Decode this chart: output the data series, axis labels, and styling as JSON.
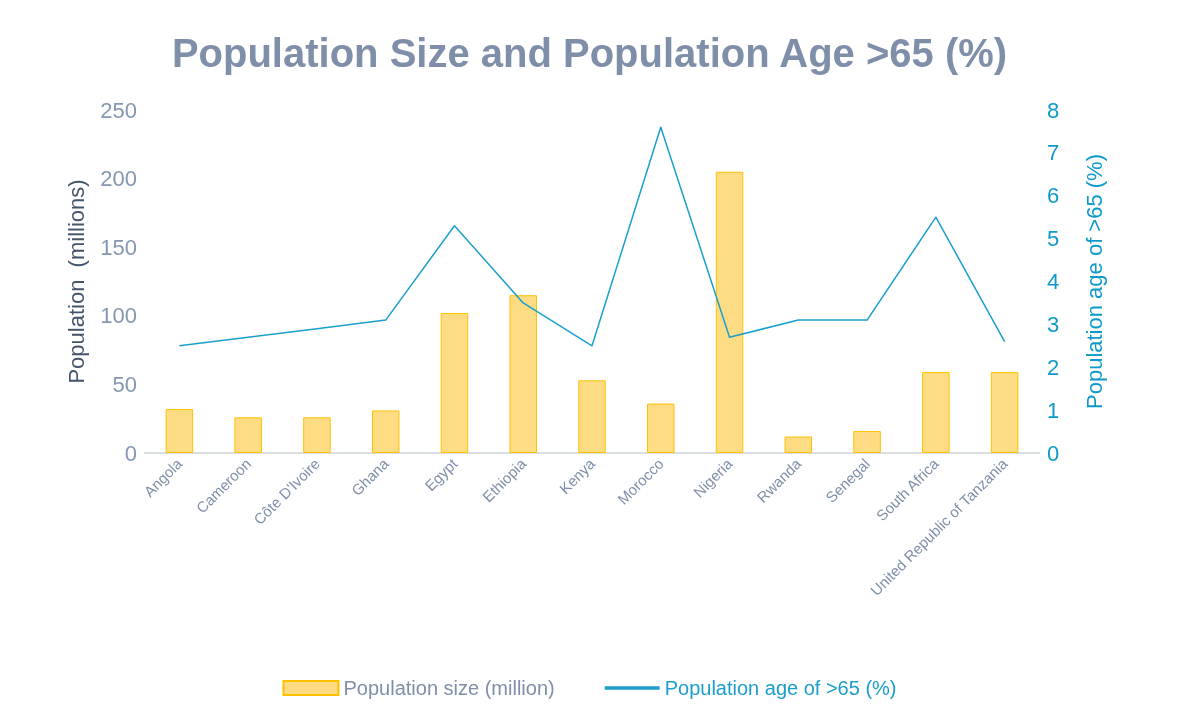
{
  "chart_data": {
    "type": "bar",
    "title": "Population Size and Population Age >65 (%)",
    "ylabel": "Population  (millions)",
    "y2label": "Population age of >65 (%)",
    "categories": [
      "Angola",
      "Cameroon",
      "Côte D'Ivoire",
      "Ghana",
      "Egypt",
      "Ethiopia",
      "Kenya",
      "Morocco",
      "Nigeria",
      "Rwanda",
      "Senegal",
      "South Africa",
      "United Republic of Tanzania"
    ],
    "series": [
      {
        "name": "Population size (million)",
        "color": "#fddc84",
        "values": [
          32,
          26,
          26,
          31,
          102,
          115,
          53,
          36,
          205,
          12,
          16,
          59,
          59
        ]
      },
      {
        "name": "Population age of >65 (%)",
        "type": "line",
        "axis": "y2",
        "color": "#1a9fcc",
        "values": [
          2.5,
          2.7,
          2.9,
          3.1,
          5.3,
          3.5,
          2.5,
          7.6,
          2.7,
          3.1,
          3.1,
          5.5,
          2.6
        ]
      }
    ],
    "ylim": [
      0,
      250
    ],
    "yticks": [
      0,
      50,
      100,
      150,
      200,
      250
    ],
    "y2lim": [
      0,
      8
    ],
    "y2ticks": [
      0,
      1,
      2,
      3,
      4,
      5,
      6,
      7,
      8
    ],
    "grid": false,
    "legend": "bottom",
    "marker": "none",
    "line_style": "solid"
  }
}
